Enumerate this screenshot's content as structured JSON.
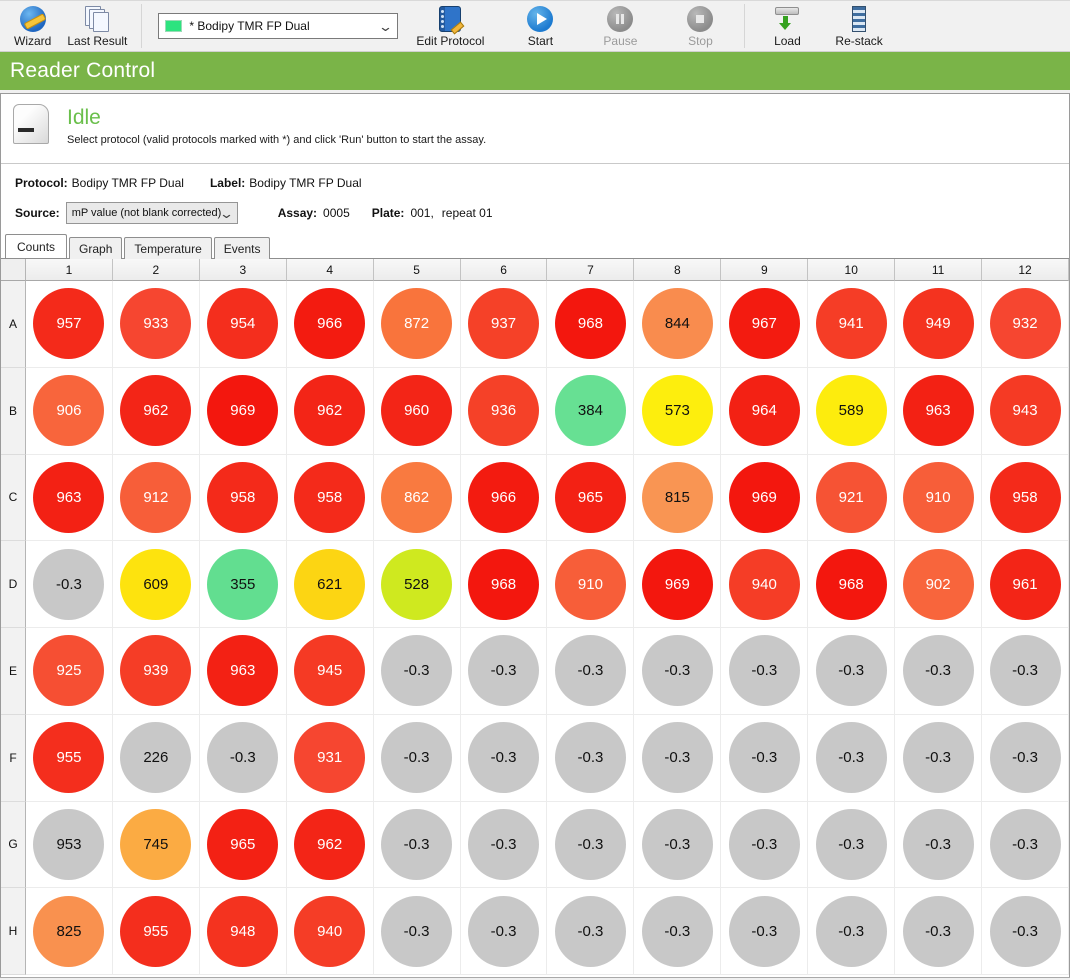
{
  "toolbar": {
    "wizard": "Wizard",
    "last_result": "Last Result",
    "protocol_dropdown": {
      "value": "* Bodipy TMR FP Dual",
      "swatch_color": "#2de37f"
    },
    "edit_protocol": "Edit Protocol",
    "start": "Start",
    "pause": "Pause",
    "stop": "Stop",
    "load": "Load",
    "restack": "Re-stack"
  },
  "banner": {
    "title": "Reader Control",
    "color": "#7ab448"
  },
  "status": {
    "state": "Idle",
    "message": "Select protocol (valid protocols marked with *) and click 'Run' button to start the assay."
  },
  "info": {
    "protocol_label": "Protocol:",
    "protocol": "Bodipy TMR FP Dual",
    "label_label": "Label:",
    "label": "Bodipy TMR FP Dual",
    "source_label": "Source:",
    "source_value": "mP value (not blank corrected)",
    "assay_label": "Assay:",
    "assay": "0005",
    "plate_label": "Plate:",
    "plate": "001,",
    "repeat": "repeat 01"
  },
  "tabs": [
    {
      "label": "Counts",
      "active": true
    },
    {
      "label": "Graph",
      "active": false
    },
    {
      "label": "Temperature",
      "active": false
    },
    {
      "label": "Events",
      "active": false
    }
  ],
  "plate": {
    "columns": [
      "1",
      "2",
      "3",
      "4",
      "5",
      "6",
      "7",
      "8",
      "9",
      "10",
      "11",
      "12"
    ],
    "rows": [
      "A",
      "B",
      "C",
      "D",
      "E",
      "F",
      "G",
      "H"
    ],
    "wells": [
      [
        {
          "v": "957",
          "c": "#f42a1a",
          "t": "#ffffff"
        },
        {
          "v": "933",
          "c": "#f64630",
          "t": "#ffffff"
        },
        {
          "v": "954",
          "c": "#f42e1d",
          "t": "#ffffff"
        },
        {
          "v": "966",
          "c": "#f31b10",
          "t": "#ffffff"
        },
        {
          "v": "872",
          "c": "#f9743c",
          "t": "#ffffff"
        },
        {
          "v": "937",
          "c": "#f54128",
          "t": "#ffffff"
        },
        {
          "v": "968",
          "c": "#f3170e",
          "t": "#ffffff"
        },
        {
          "v": "844",
          "c": "#f98c4e",
          "t": "#111111"
        },
        {
          "v": "967",
          "c": "#f31b10",
          "t": "#ffffff"
        },
        {
          "v": "941",
          "c": "#f53d26",
          "t": "#ffffff"
        },
        {
          "v": "949",
          "c": "#f4331f",
          "t": "#ffffff"
        },
        {
          "v": "932",
          "c": "#f64630",
          "t": "#ffffff"
        }
      ],
      [
        {
          "v": "906",
          "c": "#f8653c",
          "t": "#ffffff"
        },
        {
          "v": "962",
          "c": "#f32517",
          "t": "#ffffff"
        },
        {
          "v": "969",
          "c": "#f3170e",
          "t": "#ffffff"
        },
        {
          "v": "962",
          "c": "#f32517",
          "t": "#ffffff"
        },
        {
          "v": "960",
          "c": "#f32517",
          "t": "#ffffff"
        },
        {
          "v": "936",
          "c": "#f54128",
          "t": "#ffffff"
        },
        {
          "v": "384",
          "c": "#67e093",
          "t": "#111111"
        },
        {
          "v": "573",
          "c": "#fdee0d",
          "t": "#111111"
        },
        {
          "v": "964",
          "c": "#f32114",
          "t": "#ffffff"
        },
        {
          "v": "589",
          "c": "#fdec0d",
          "t": "#111111"
        },
        {
          "v": "963",
          "c": "#f32114",
          "t": "#ffffff"
        },
        {
          "v": "943",
          "c": "#f53a24",
          "t": "#ffffff"
        }
      ],
      [
        {
          "v": "963",
          "c": "#f32114",
          "t": "#ffffff"
        },
        {
          "v": "912",
          "c": "#f75e39",
          "t": "#ffffff"
        },
        {
          "v": "958",
          "c": "#f42a1a",
          "t": "#ffffff"
        },
        {
          "v": "958",
          "c": "#f42a1a",
          "t": "#ffffff"
        },
        {
          "v": "862",
          "c": "#f97a40",
          "t": "#ffffff"
        },
        {
          "v": "966",
          "c": "#f31b10",
          "t": "#ffffff"
        },
        {
          "v": "965",
          "c": "#f32114",
          "t": "#ffffff"
        },
        {
          "v": "815",
          "c": "#f99553",
          "t": "#111111"
        },
        {
          "v": "969",
          "c": "#f3170e",
          "t": "#ffffff"
        },
        {
          "v": "921",
          "c": "#f65334",
          "t": "#ffffff"
        },
        {
          "v": "910",
          "c": "#f75e39",
          "t": "#ffffff"
        },
        {
          "v": "958",
          "c": "#f42a1a",
          "t": "#ffffff"
        }
      ],
      [
        {
          "v": "-0.3",
          "c": "#c8c8c8",
          "t": "#111111"
        },
        {
          "v": "609",
          "c": "#fde30e",
          "t": "#111111"
        },
        {
          "v": "355",
          "c": "#62de90",
          "t": "#111111"
        },
        {
          "v": "621",
          "c": "#fcd513",
          "t": "#111111"
        },
        {
          "v": "528",
          "c": "#cfe91f",
          "t": "#111111"
        },
        {
          "v": "968",
          "c": "#f3170e",
          "t": "#ffffff"
        },
        {
          "v": "910",
          "c": "#f75e39",
          "t": "#ffffff"
        },
        {
          "v": "969",
          "c": "#f3170e",
          "t": "#ffffff"
        },
        {
          "v": "940",
          "c": "#f53d26",
          "t": "#ffffff"
        },
        {
          "v": "968",
          "c": "#f3170e",
          "t": "#ffffff"
        },
        {
          "v": "902",
          "c": "#f8653c",
          "t": "#ffffff"
        },
        {
          "v": "961",
          "c": "#f32517",
          "t": "#ffffff"
        }
      ],
      [
        {
          "v": "925",
          "c": "#f64f33",
          "t": "#ffffff"
        },
        {
          "v": "939",
          "c": "#f53d26",
          "t": "#ffffff"
        },
        {
          "v": "963",
          "c": "#f32114",
          "t": "#ffffff"
        },
        {
          "v": "945",
          "c": "#f53a24",
          "t": "#ffffff"
        },
        {
          "v": "-0.3",
          "c": "#c8c8c8",
          "t": "#111111"
        },
        {
          "v": "-0.3",
          "c": "#c8c8c8",
          "t": "#111111"
        },
        {
          "v": "-0.3",
          "c": "#c8c8c8",
          "t": "#111111"
        },
        {
          "v": "-0.3",
          "c": "#c8c8c8",
          "t": "#111111"
        },
        {
          "v": "-0.3",
          "c": "#c8c8c8",
          "t": "#111111"
        },
        {
          "v": "-0.3",
          "c": "#c8c8c8",
          "t": "#111111"
        },
        {
          "v": "-0.3",
          "c": "#c8c8c8",
          "t": "#111111"
        },
        {
          "v": "-0.3",
          "c": "#c8c8c8",
          "t": "#111111"
        }
      ],
      [
        {
          "v": "955",
          "c": "#f42e1d",
          "t": "#ffffff"
        },
        {
          "v": "226",
          "c": "#c8c8c8",
          "t": "#111111"
        },
        {
          "v": "-0.3",
          "c": "#c8c8c8",
          "t": "#111111"
        },
        {
          "v": "931",
          "c": "#f64630",
          "t": "#ffffff"
        },
        {
          "v": "-0.3",
          "c": "#c8c8c8",
          "t": "#111111"
        },
        {
          "v": "-0.3",
          "c": "#c8c8c8",
          "t": "#111111"
        },
        {
          "v": "-0.3",
          "c": "#c8c8c8",
          "t": "#111111"
        },
        {
          "v": "-0.3",
          "c": "#c8c8c8",
          "t": "#111111"
        },
        {
          "v": "-0.3",
          "c": "#c8c8c8",
          "t": "#111111"
        },
        {
          "v": "-0.3",
          "c": "#c8c8c8",
          "t": "#111111"
        },
        {
          "v": "-0.3",
          "c": "#c8c8c8",
          "t": "#111111"
        },
        {
          "v": "-0.3",
          "c": "#c8c8c8",
          "t": "#111111"
        }
      ],
      [
        {
          "v": "953",
          "c": "#c8c8c8",
          "t": "#111111"
        },
        {
          "v": "745",
          "c": "#fbab43",
          "t": "#111111"
        },
        {
          "v": "965",
          "c": "#f32114",
          "t": "#ffffff"
        },
        {
          "v": "962",
          "c": "#f32517",
          "t": "#ffffff"
        },
        {
          "v": "-0.3",
          "c": "#c8c8c8",
          "t": "#111111"
        },
        {
          "v": "-0.3",
          "c": "#c8c8c8",
          "t": "#111111"
        },
        {
          "v": "-0.3",
          "c": "#c8c8c8",
          "t": "#111111"
        },
        {
          "v": "-0.3",
          "c": "#c8c8c8",
          "t": "#111111"
        },
        {
          "v": "-0.3",
          "c": "#c8c8c8",
          "t": "#111111"
        },
        {
          "v": "-0.3",
          "c": "#c8c8c8",
          "t": "#111111"
        },
        {
          "v": "-0.3",
          "c": "#c8c8c8",
          "t": "#111111"
        },
        {
          "v": "-0.3",
          "c": "#c8c8c8",
          "t": "#111111"
        }
      ],
      [
        {
          "v": "825",
          "c": "#f9914f",
          "t": "#111111"
        },
        {
          "v": "955",
          "c": "#f42e1d",
          "t": "#ffffff"
        },
        {
          "v": "948",
          "c": "#f4331f",
          "t": "#ffffff"
        },
        {
          "v": "940",
          "c": "#f53d26",
          "t": "#ffffff"
        },
        {
          "v": "-0.3",
          "c": "#c8c8c8",
          "t": "#111111"
        },
        {
          "v": "-0.3",
          "c": "#c8c8c8",
          "t": "#111111"
        },
        {
          "v": "-0.3",
          "c": "#c8c8c8",
          "t": "#111111"
        },
        {
          "v": "-0.3",
          "c": "#c8c8c8",
          "t": "#111111"
        },
        {
          "v": "-0.3",
          "c": "#c8c8c8",
          "t": "#111111"
        },
        {
          "v": "-0.3",
          "c": "#c8c8c8",
          "t": "#111111"
        },
        {
          "v": "-0.3",
          "c": "#c8c8c8",
          "t": "#111111"
        },
        {
          "v": "-0.3",
          "c": "#c8c8c8",
          "t": "#111111"
        }
      ]
    ]
  }
}
